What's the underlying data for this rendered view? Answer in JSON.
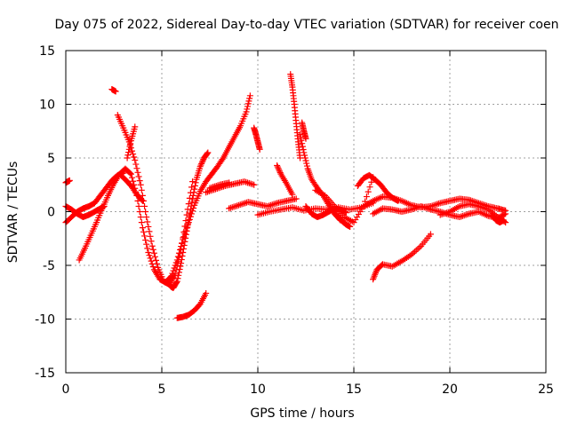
{
  "chart_data": {
    "type": "scatter",
    "title": "Day 075 of 2022, Sidereal Day-to-day VTEC variation (SDTVAR) for receiver coen",
    "xlabel": "GPS time / hours",
    "ylabel": "SDTVAR / TECUs",
    "xlim": [
      0,
      25
    ],
    "ylim": [
      -15,
      15
    ],
    "xticks": [
      0,
      5,
      10,
      15,
      20,
      25
    ],
    "yticks": [
      -15,
      -10,
      -5,
      0,
      5,
      10,
      15
    ],
    "xtick_labels": [
      "0",
      "5",
      "10",
      "15",
      "20",
      "25"
    ],
    "ytick_labels": [
      "-15",
      "-10",
      "-5",
      "0",
      "5",
      "10",
      "15"
    ],
    "grid": true,
    "marker": "+",
    "color": "#ff0000",
    "series": [
      {
        "name": "s1",
        "x": [
          0.0,
          0.1,
          0.2
        ],
        "y": [
          2.7,
          2.8,
          2.9
        ]
      },
      {
        "name": "s2",
        "x": [
          0.0,
          0.3,
          0.6,
          0.9,
          1.2,
          1.5,
          1.8,
          2.1,
          2.4,
          2.7,
          3.0
        ],
        "y": [
          -1.0,
          -0.5,
          0.0,
          0.3,
          0.5,
          0.8,
          1.5,
          2.2,
          2.9,
          3.4,
          3.6
        ]
      },
      {
        "name": "s3",
        "x": [
          0.0,
          0.3,
          0.6,
          0.9,
          1.2,
          1.5,
          1.8,
          2.0
        ],
        "y": [
          0.5,
          0.2,
          -0.2,
          -0.5,
          -0.3,
          0.0,
          0.3,
          0.5
        ]
      },
      {
        "name": "s4",
        "x": [
          0.7,
          1.0,
          1.3,
          1.6,
          1.9,
          2.2,
          2.5,
          2.8,
          3.1,
          3.4,
          3.7,
          4.0,
          4.3,
          4.6,
          4.9,
          5.2,
          5.5,
          5.8,
          6.1,
          6.4,
          6.7,
          7.0,
          7.3,
          7.6,
          7.9,
          8.2,
          8.5,
          8.8,
          9.1,
          9.4,
          9.6
        ],
        "y": [
          -4.5,
          -3.4,
          -2.2,
          -1.0,
          0.3,
          1.5,
          2.6,
          3.5,
          4.0,
          3.5,
          1.5,
          -1.5,
          -3.8,
          -5.4,
          -6.3,
          -6.6,
          -6.0,
          -4.5,
          -2.6,
          -1.0,
          0.6,
          1.9,
          2.8,
          3.5,
          4.2,
          5.0,
          6.0,
          7.0,
          8.0,
          9.3,
          10.8
        ]
      },
      {
        "name": "s5",
        "x": [
          2.4,
          2.6
        ],
        "y": [
          11.4,
          11.2
        ]
      },
      {
        "name": "s6",
        "x": [
          2.7,
          3.0,
          3.3,
          3.6,
          3.9,
          4.2,
          4.5,
          4.8,
          5.1,
          5.4,
          5.7,
          6.0,
          6.3,
          6.6
        ],
        "y": [
          9.0,
          7.8,
          6.5,
          4.8,
          2.5,
          -0.5,
          -3.2,
          -5.2,
          -6.5,
          -6.8,
          -5.8,
          -3.5,
          -0.3,
          2.8
        ]
      },
      {
        "name": "s7",
        "x": [
          2.8,
          3.1,
          3.4,
          3.7,
          4.0
        ],
        "y": [
          3.5,
          3.0,
          2.4,
          1.6,
          1.0
        ]
      },
      {
        "name": "s8",
        "x": [
          3.2,
          3.4,
          3.6
        ],
        "y": [
          5.0,
          6.6,
          7.9
        ]
      },
      {
        "name": "s9",
        "x": [
          5.4,
          5.5,
          5.6,
          5.8,
          6.0,
          6.2,
          6.4,
          6.6,
          6.8,
          7.0,
          7.2,
          7.4
        ],
        "y": [
          -6.8,
          -7.0,
          -7.1,
          -6.5,
          -4.8,
          -2.8,
          -0.8,
          1.2,
          3.0,
          4.2,
          5.0,
          5.5
        ]
      },
      {
        "name": "s10",
        "x": [
          5.8,
          6.1,
          6.4,
          6.7,
          7.0,
          7.3
        ],
        "y": [
          -9.9,
          -9.8,
          -9.6,
          -9.2,
          -8.6,
          -7.6
        ]
      },
      {
        "name": "s11",
        "x": [
          7.3,
          7.8,
          8.3,
          8.8,
          9.3,
          9.8
        ],
        "y": [
          1.8,
          2.1,
          2.4,
          2.6,
          2.8,
          2.5
        ]
      },
      {
        "name": "s12",
        "x": [
          7.5,
          8.0,
          8.5
        ],
        "y": [
          2.2,
          2.5,
          2.7
        ]
      },
      {
        "name": "s13",
        "x": [
          8.5,
          9.0,
          9.5,
          10.0,
          10.5,
          11.0,
          11.5,
          12.0
        ],
        "y": [
          0.3,
          0.6,
          0.9,
          0.7,
          0.5,
          0.8,
          1.0,
          1.2
        ]
      },
      {
        "name": "s14",
        "x": [
          9.8,
          9.9,
          10.0,
          10.1
        ],
        "y": [
          7.8,
          7.2,
          6.5,
          5.8
        ]
      },
      {
        "name": "s15",
        "x": [
          10.0,
          10.6,
          11.2,
          11.8,
          12.4,
          13.0,
          13.6,
          14.2,
          14.8,
          15.4,
          16.0
        ],
        "y": [
          -0.3,
          0.0,
          0.2,
          0.4,
          0.1,
          0.3,
          0.2,
          0.4,
          0.2,
          0.4,
          0.8
        ]
      },
      {
        "name": "s16",
        "x": [
          11.0,
          11.2,
          11.5,
          11.8
        ],
        "y": [
          4.3,
          3.5,
          2.6,
          1.6
        ]
      },
      {
        "name": "s17",
        "x": [
          11.7,
          11.8,
          11.9,
          12.0,
          12.1,
          12.2
        ],
        "y": [
          12.8,
          11.6,
          10.0,
          8.2,
          6.5,
          5.0
        ]
      },
      {
        "name": "s18",
        "x": [
          12.2,
          12.4,
          12.6,
          12.8,
          13.1,
          13.4,
          13.7,
          14.0,
          14.3
        ],
        "y": [
          7.2,
          5.5,
          4.0,
          3.0,
          2.2,
          1.5,
          0.6,
          -0.2,
          -0.8
        ]
      },
      {
        "name": "s19",
        "x": [
          12.3,
          12.4,
          12.5
        ],
        "y": [
          8.3,
          7.5,
          6.8
        ]
      },
      {
        "name": "s20",
        "x": [
          12.5,
          12.8,
          13.1,
          13.4,
          13.7,
          14.0,
          14.3,
          14.6
        ],
        "y": [
          0.5,
          -0.2,
          -0.5,
          -0.3,
          0.0,
          0.3,
          0.2,
          -0.1
        ]
      },
      {
        "name": "s21",
        "x": [
          13.0,
          13.5,
          14.0,
          14.5,
          15.0,
          15.5,
          16.0
        ],
        "y": [
          2.0,
          1.5,
          0.5,
          -0.5,
          -1.0,
          0.5,
          3.2
        ]
      },
      {
        "name": "s22",
        "x": [
          14.0,
          14.2,
          14.4,
          14.6,
          14.8
        ],
        "y": [
          -0.2,
          -0.5,
          -0.9,
          -1.2,
          -1.4
        ]
      },
      {
        "name": "s23",
        "x": [
          15.2,
          15.5,
          15.8,
          16.1,
          16.4,
          16.7,
          17.0,
          17.3
        ],
        "y": [
          2.4,
          3.1,
          3.4,
          3.0,
          2.5,
          1.8,
          1.3,
          1.0
        ]
      },
      {
        "name": "s24",
        "x": [
          15.5,
          16.0,
          16.5,
          17.0,
          17.5,
          18.0,
          18.5,
          19.0,
          19.5,
          20.0,
          20.5,
          21.0,
          21.5,
          22.0,
          22.5,
          22.9
        ],
        "y": [
          0.5,
          1.0,
          1.4,
          1.3,
          1.0,
          0.6,
          0.4,
          0.5,
          0.8,
          1.0,
          1.2,
          1.1,
          0.8,
          0.5,
          0.3,
          0.1
        ]
      },
      {
        "name": "s25",
        "x": [
          16.0,
          16.5,
          17.0,
          17.5,
          18.0,
          18.5,
          19.0,
          19.5,
          20.0,
          20.5,
          21.0,
          21.5,
          22.0,
          22.5,
          22.9
        ],
        "y": [
          -0.2,
          0.3,
          0.2,
          0.0,
          0.2,
          0.5,
          0.2,
          0.0,
          -0.3,
          -0.5,
          -0.2,
          0.0,
          -0.4,
          -0.6,
          -0.2
        ]
      },
      {
        "name": "s26",
        "x": [
          16.0,
          16.2,
          16.5,
          17.0,
          17.5,
          18.0,
          18.5,
          19.0
        ],
        "y": [
          -6.3,
          -5.4,
          -4.9,
          -5.1,
          -4.6,
          -4.0,
          -3.2,
          -2.1
        ]
      },
      {
        "name": "s27",
        "x": [
          19.5,
          20.0,
          20.5,
          21.0,
          21.5,
          22.0,
          22.5,
          22.9
        ],
        "y": [
          -0.3,
          0.0,
          0.5,
          0.7,
          0.5,
          0.2,
          -0.5,
          -1.0
        ]
      },
      {
        "name": "s28",
        "x": [
          22.2,
          22.4,
          22.6,
          22.8
        ],
        "y": [
          -0.3,
          -0.8,
          -1.0,
          -0.8
        ]
      }
    ]
  }
}
